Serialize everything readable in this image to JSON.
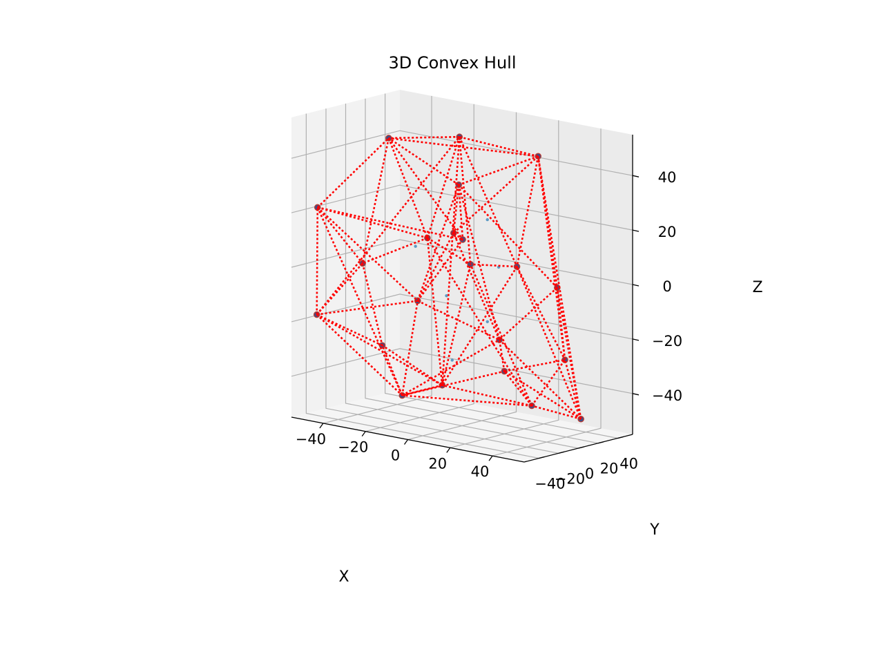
{
  "chart_data": {
    "type": "scatter",
    "subtype": "3d-scatter-with-convex-hull",
    "title": "3D Convex Hull",
    "xlabel": "X",
    "ylabel": "Y",
    "zlabel": "Z",
    "xlim": [
      -55,
      55
    ],
    "ylim": [
      -55,
      55
    ],
    "zlim": [
      -55,
      55
    ],
    "x_ticks": [
      "−40",
      "−20",
      "0",
      "20",
      "40"
    ],
    "y_ticks": [
      "−40",
      "−20",
      "0",
      "20",
      "40"
    ],
    "z_ticks": [
      "−40",
      "−20",
      "0",
      "20",
      "40"
    ],
    "grid": true,
    "colors": {
      "points": "#1f77b4",
      "hull": "#ff0000",
      "pane": "#f2f2f2",
      "grid": "#b0b0b0"
    },
    "hull_points": [
      {
        "x": 45,
        "y": 24,
        "z": -48
      },
      {
        "x": -50,
        "y": -40,
        "z": -18
      },
      {
        "x": -45,
        "y": -50,
        "z": 23
      },
      {
        "x": 15,
        "y": 45,
        "z": 42
      },
      {
        "x": -18,
        "y": 36,
        "z": 45
      },
      {
        "x": 38,
        "y": 15,
        "z": 0
      },
      {
        "x": 12,
        "y": 45,
        "z": -50
      },
      {
        "x": 18,
        "y": -42,
        "z": 40
      },
      {
        "x": -30,
        "y": -10,
        "z": 47
      },
      {
        "x": 5,
        "y": 45,
        "z": 0
      },
      {
        "x": -28,
        "y": 40,
        "z": -48
      },
      {
        "x": -5,
        "y": -50,
        "z": -40
      },
      {
        "x": -35,
        "y": 40,
        "z": 5
      },
      {
        "x": 20,
        "y": 0,
        "z": -32
      },
      {
        "x": 0,
        "y": -45,
        "z": -5
      },
      {
        "x": -10,
        "y": 30,
        "z": 0
      },
      {
        "x": 20,
        "y": -5,
        "z": -20
      },
      {
        "x": -40,
        "y": -15,
        "z": 0
      },
      {
        "x": 30,
        "y": 40,
        "z": -30
      },
      {
        "x": 5,
        "y": -10,
        "z": 15
      },
      {
        "x": -20,
        "y": -38,
        "z": -25
      },
      {
        "x": 10,
        "y": -30,
        "z": 20
      }
    ],
    "interior_points": [
      {
        "x": 5,
        "y": 15,
        "z": 20
      },
      {
        "x": -12,
        "y": 10,
        "z": -10
      },
      {
        "x": 15,
        "y": 5,
        "z": 5
      },
      {
        "x": 0,
        "y": -10,
        "z": -30
      },
      {
        "x": -15,
        "y": -15,
        "z": 10
      },
      {
        "x": 12,
        "y": 0,
        "z": -15
      }
    ],
    "hull_edges": [
      [
        0,
        3
      ],
      [
        0,
        5
      ],
      [
        0,
        6
      ],
      [
        0,
        9
      ],
      [
        0,
        13
      ],
      [
        0,
        18
      ],
      [
        0,
        16
      ],
      [
        1,
        2
      ],
      [
        1,
        11
      ],
      [
        1,
        20
      ],
      [
        1,
        10
      ],
      [
        1,
        14
      ],
      [
        1,
        17
      ],
      [
        1,
        4
      ],
      [
        2,
        8
      ],
      [
        2,
        17
      ],
      [
        2,
        11
      ],
      [
        2,
        12
      ],
      [
        2,
        14
      ],
      [
        2,
        19
      ],
      [
        3,
        4
      ],
      [
        3,
        7
      ],
      [
        3,
        5
      ],
      [
        3,
        9
      ],
      [
        3,
        18
      ],
      [
        3,
        8
      ],
      [
        3,
        21
      ],
      [
        4,
        8
      ],
      [
        4,
        10
      ],
      [
        4,
        12
      ],
      [
        4,
        15
      ],
      [
        4,
        9
      ],
      [
        5,
        7
      ],
      [
        5,
        16
      ],
      [
        5,
        18
      ],
      [
        6,
        10
      ],
      [
        6,
        11
      ],
      [
        6,
        13
      ],
      [
        6,
        18
      ],
      [
        6,
        15
      ],
      [
        6,
        12
      ],
      [
        7,
        8
      ],
      [
        7,
        19
      ],
      [
        7,
        21
      ],
      [
        7,
        14
      ],
      [
        7,
        16
      ],
      [
        8,
        12
      ],
      [
        8,
        19
      ],
      [
        8,
        17
      ],
      [
        9,
        15
      ],
      [
        9,
        18
      ],
      [
        9,
        10
      ],
      [
        10,
        12
      ],
      [
        10,
        11
      ],
      [
        10,
        15
      ],
      [
        10,
        20
      ],
      [
        11,
        13
      ],
      [
        11,
        20
      ],
      [
        11,
        14
      ],
      [
        11,
        16
      ],
      [
        12,
        17
      ],
      [
        12,
        15
      ],
      [
        13,
        16
      ],
      [
        14,
        16
      ],
      [
        14,
        19
      ],
      [
        14,
        21
      ],
      [
        16,
        21
      ],
      [
        19,
        21
      ],
      [
        13,
        18
      ],
      [
        17,
        20
      ]
    ]
  }
}
